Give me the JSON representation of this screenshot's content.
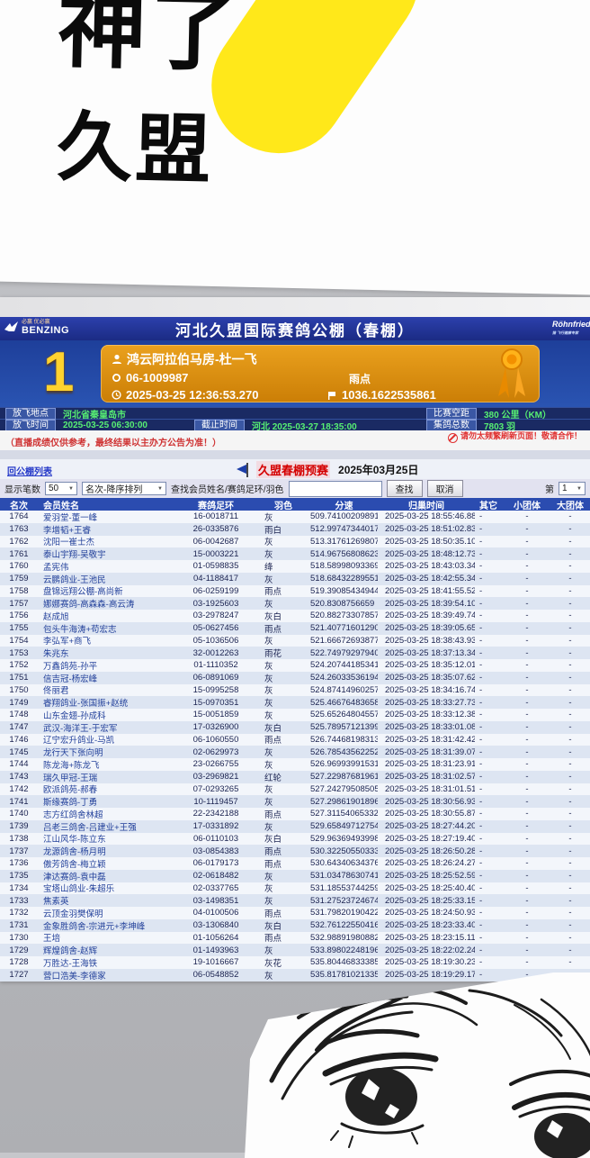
{
  "overlay": {
    "line1": "神了",
    "line2": "久盟"
  },
  "site_header": {
    "title": "河北久盟国际赛鸽公棚（春棚）",
    "left_logo_small": "必赢 优必赢",
    "left_logo_main": "BENZING",
    "right_logo": "Röhnfried",
    "right_logo_sub": "猎 飞行健康专家"
  },
  "winner_banner": {
    "rank": "1",
    "member": "鸿云阿拉伯马房-杜一飞",
    "ring": "06-1009987",
    "feather": "雨点",
    "clock_time": "2025-03-25 12:36:53.270",
    "speed": "1036.1622535861"
  },
  "race_info": {
    "release_site_label": "放飞地点",
    "release_site": "河北省秦皇岛市",
    "distance_label": "比赛空距",
    "distance": "380 公里（KM）",
    "release_time_label": "放飞时间",
    "release_time": "2025-03-25 06:30:00",
    "deadline_label": "截止时间",
    "deadline": "河北  2025-03-27 18:35:00",
    "total_label": "集鸽总数",
    "total": "7803 羽"
  },
  "notice": {
    "left": "（直播成绩仅供参考，最终结果以主办方公告为准！）",
    "right": "请勿太频繁刷新页面！敬请合作！"
  },
  "race_bar": {
    "back_link": "回公棚列表",
    "race_name": "久盟春棚预赛",
    "race_date": "2025年03月25日"
  },
  "controls": {
    "page_size_label": "显示笔数",
    "page_size": "50",
    "sort_order": "名次-降序排列",
    "search_label": "查找会员姓名/赛鸽足环/羽色",
    "search_value": "",
    "search_button": "查找",
    "cancel_button": "取消",
    "page_label": "第",
    "page_number": "1"
  },
  "icons": {
    "chevron_down": "▼"
  },
  "table": {
    "headers": [
      "名次",
      "会员姓名",
      "赛鸽足环",
      "羽色",
      "分速",
      "归巢时间",
      "其它",
      "小团体",
      "大团体"
    ],
    "fields": [
      "rank",
      "member",
      "ring",
      "feather",
      "speed",
      "return-time",
      "other",
      "small-team",
      "big-team"
    ],
    "rows": [
      [
        "1764",
        "爱羽堂-董一峰",
        "16-0018711",
        "灰",
        "509.74100209891",
        "2025-03-25 18:55:46.880",
        "-",
        "-",
        "-"
      ],
      [
        "1763",
        "李增韬+王睿",
        "26-0335876",
        "雨白",
        "512.99747344017",
        "2025-03-25 18:51:02.830",
        "-",
        "-",
        "-"
      ],
      [
        "1762",
        "沈阳一崔士杰",
        "06-0042687",
        "灰",
        "513.31761269807",
        "2025-03-25 18:50:35.100",
        "-",
        "-",
        "-"
      ],
      [
        "1761",
        "泰山宇翔-吴敬宇",
        "15-0003221",
        "灰",
        "514.96756808623",
        "2025-03-25 18:48:12.730",
        "-",
        "-",
        "-"
      ],
      [
        "1760",
        "孟宪伟",
        "01-0598835",
        "绛",
        "518.58998093369",
        "2025-03-25 18:43:03.340",
        "-",
        "-",
        "-"
      ],
      [
        "1759",
        "云鹏鸽业-王池民",
        "04-1188417",
        "灰",
        "518.68432289551",
        "2025-03-25 18:42:55.340",
        "-",
        "-",
        "-"
      ],
      [
        "1758",
        "盘锦远翔公棚-高尚新",
        "06-0259199",
        "雨点",
        "519.39085434944",
        "2025-03-25 18:41:55.520",
        "-",
        "-",
        "-"
      ],
      [
        "1757",
        "娜娜赛鸽-高森森-高云涛",
        "03-1925603",
        "灰",
        "520.8308756659",
        "2025-03-25 18:39:54.100",
        "-",
        "-",
        "-"
      ],
      [
        "1756",
        "赵成旭",
        "03-2978247",
        "灰白",
        "520.88273307857",
        "2025-03-25 18:39:49.740",
        "-",
        "-",
        "-"
      ],
      [
        "1755",
        "包头牛海涛+苟宏志",
        "05-0627456",
        "雨点",
        "521.40771601290",
        "2025-03-25 18:39:05.650",
        "-",
        "-",
        "-"
      ],
      [
        "1754",
        "李弘军+商飞",
        "05-1036506",
        "灰",
        "521.66672693877",
        "2025-03-25 18:38:43.930",
        "-",
        "-",
        "-"
      ],
      [
        "1753",
        "朱兆东",
        "32-0012263",
        "雨花",
        "522.74979297940",
        "2025-03-25 18:37:13.340",
        "-",
        "-",
        "-"
      ],
      [
        "1752",
        "万鑫鸽苑-孙平",
        "01-1110352",
        "灰",
        "524.20744185341",
        "2025-03-25 18:35:12.010",
        "-",
        "-",
        "-"
      ],
      [
        "1751",
        "信吉冠-杨宏峰",
        "06-0891069",
        "灰",
        "524.26033536194",
        "2025-03-25 18:35:07.620",
        "-",
        "-",
        "-"
      ],
      [
        "1750",
        "佟丽君",
        "15-0995258",
        "灰",
        "524.87414960257",
        "2025-03-25 18:34:16.740",
        "-",
        "-",
        "-"
      ],
      [
        "1749",
        "睿翔鸽业-张国振+赵统",
        "15-0970351",
        "灰",
        "525.46676483658",
        "2025-03-25 18:33:27.730",
        "-",
        "-",
        "-"
      ],
      [
        "1748",
        "山东金翅-孙成科",
        "15-0051859",
        "灰",
        "525.65264804557",
        "2025-03-25 18:33:12.380",
        "-",
        "-",
        "-"
      ],
      [
        "1747",
        "武汉-海洋王-于宏军",
        "17-0326900",
        "灰白",
        "525.78957121399",
        "2025-03-25 18:33:01.080",
        "-",
        "-",
        "-"
      ],
      [
        "1746",
        "辽宁宏升鸽业-马凯",
        "06-1060550",
        "雨点",
        "526.74468198313",
        "2025-03-25 18:31:42.420",
        "-",
        "-",
        "-"
      ],
      [
        "1745",
        "龙行天下张向明",
        "02-0629973",
        "灰",
        "526.78543562252",
        "2025-03-25 18:31:39.070",
        "-",
        "-",
        "-"
      ],
      [
        "1744",
        "陈龙海+陈龙飞",
        "23-0266755",
        "灰",
        "526.96993991531",
        "2025-03-25 18:31:23.910",
        "-",
        "-",
        "-"
      ],
      [
        "1743",
        "瑞久甲冠-王瑞",
        "03-2969821",
        "红轮",
        "527.22987681961",
        "2025-03-25 18:31:02.570",
        "-",
        "-",
        "-"
      ],
      [
        "1742",
        "欧派鸽苑-郝春",
        "07-0293265",
        "灰",
        "527.24279508505",
        "2025-03-25 18:31:01.510",
        "-",
        "-",
        "-"
      ],
      [
        "1741",
        "斯缘赛鸽-丁勇",
        "10-1119457",
        "灰",
        "527.29861901896",
        "2025-03-25 18:30:56.930",
        "-",
        "-",
        "-"
      ],
      [
        "1740",
        "志方红鸽舍林超",
        "22-2342188",
        "雨点",
        "527.31154065332",
        "2025-03-25 18:30:55.870",
        "-",
        "-",
        "-"
      ],
      [
        "1739",
        "吕老三鸽舍-吕建业+王强",
        "17-0331892",
        "灰",
        "529.65849712754",
        "2025-03-25 18:27:44.200",
        "-",
        "-",
        "-"
      ],
      [
        "1738",
        "江山风华-陈立东",
        "06-0110103",
        "灰白",
        "529.96369493998",
        "2025-03-25 18:27:19.400",
        "-",
        "-",
        "-"
      ],
      [
        "1737",
        "龙源鸽舍-杨月明",
        "03-0854383",
        "雨点",
        "530.32250550333",
        "2025-03-25 18:26:50.280",
        "-",
        "-",
        "-"
      ],
      [
        "1736",
        "傲芳鸽舍-梅立颖",
        "06-0179173",
        "雨点",
        "530.64340634376",
        "2025-03-25 18:26:24.270",
        "-",
        "-",
        "-"
      ],
      [
        "1735",
        "津达赛鸽-袁中磊",
        "02-0618482",
        "灰",
        "531.03478630741",
        "2025-03-25 18:25:52.590",
        "-",
        "-",
        "-"
      ],
      [
        "1734",
        "宝塔山鸽业-朱超乐",
        "02-0337765",
        "灰",
        "531.18553744259",
        "2025-03-25 18:25:40.400",
        "-",
        "-",
        "-"
      ],
      [
        "1733",
        "焦素英",
        "03-1498351",
        "灰",
        "531.27523724674",
        "2025-03-25 18:25:33.150",
        "-",
        "-",
        "-"
      ],
      [
        "1732",
        "云顶金羽樊保明",
        "04-0100506",
        "雨点",
        "531.79820190422",
        "2025-03-25 18:24:50.930",
        "-",
        "-",
        "-"
      ],
      [
        "1731",
        "金象胜鸽舍-宗进元+李坤峰",
        "03-1306840",
        "灰白",
        "532.76122550416",
        "2025-03-25 18:23:33.400",
        "-",
        "-",
        "-"
      ],
      [
        "1730",
        "王培",
        "01-1056264",
        "雨点",
        "532.98891980882",
        "2025-03-25 18:23:15.110",
        "-",
        "-",
        "-"
      ],
      [
        "1729",
        "辉煌鸽舍-赵辉",
        "01-1493963",
        "灰",
        "533.89802248196",
        "2025-03-25 18:22:02.240",
        "-",
        "-",
        "-"
      ],
      [
        "1728",
        "万胜达-王海铁",
        "19-1016667",
        "灰花",
        "535.80446833385",
        "2025-03-25 18:19:30.230",
        "-",
        "-",
        "-"
      ],
      [
        "1727",
        "营口浩美-李德家",
        "06-0548852",
        "灰",
        "535.81781021335",
        "2025-03-25 18:19:29.170",
        "-",
        "-",
        "-"
      ]
    ]
  }
}
